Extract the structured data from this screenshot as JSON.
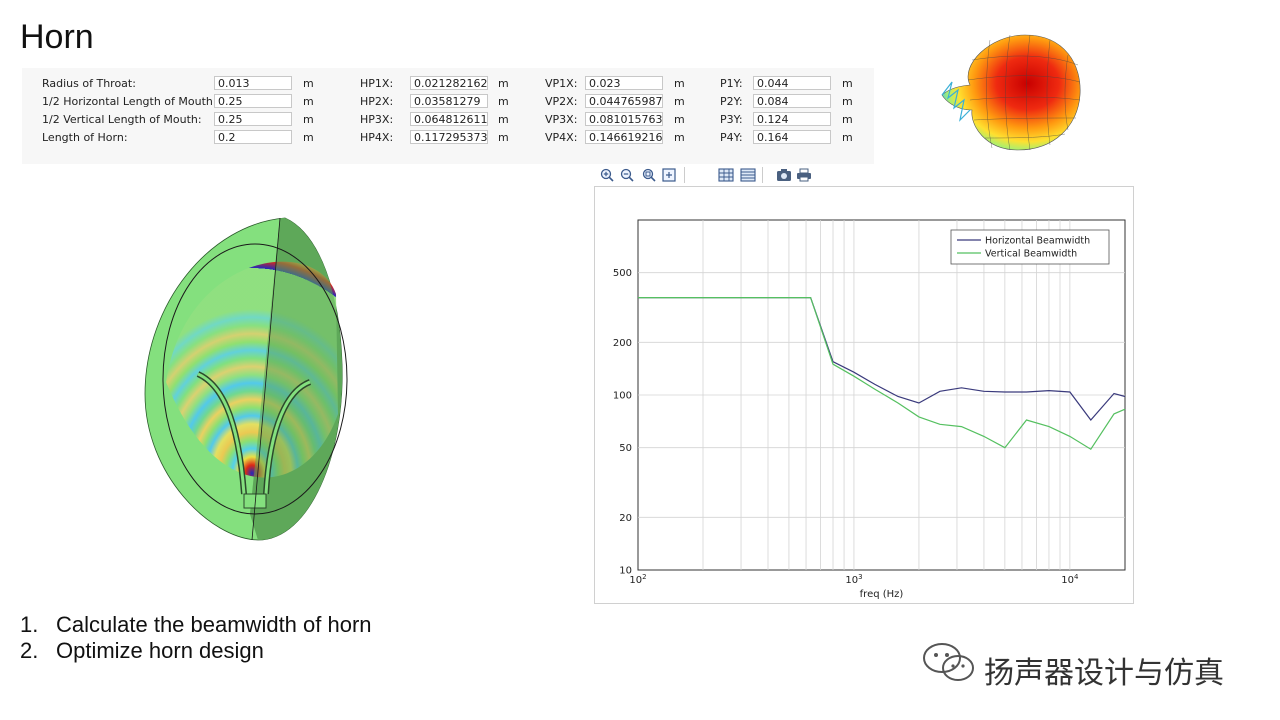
{
  "slide": {
    "title": "Horn"
  },
  "params": {
    "col1": [
      {
        "label": "Radius of Throat:",
        "value": "0.013",
        "unit": "m"
      },
      {
        "label": "1/2 Horizontal Length of Mouth:",
        "value": "0.25",
        "unit": "m"
      },
      {
        "label": "1/2 Vertical Length of Mouth:",
        "value": "0.25",
        "unit": "m"
      },
      {
        "label": "Length of Horn:",
        "value": "0.2",
        "unit": "m"
      }
    ],
    "col2": [
      {
        "label": "HP1X:",
        "value": "0.021282162",
        "unit": "m"
      },
      {
        "label": "HP2X:",
        "value": "0.03581279",
        "unit": "m"
      },
      {
        "label": "HP3X:",
        "value": "0.064812611",
        "unit": "m"
      },
      {
        "label": "HP4X:",
        "value": "0.117295373",
        "unit": "m"
      }
    ],
    "col3": [
      {
        "label": "VP1X:",
        "value": "0.023",
        "unit": "m"
      },
      {
        "label": "VP2X:",
        "value": "0.044765987",
        "unit": "m"
      },
      {
        "label": "VP3X:",
        "value": "0.081015763",
        "unit": "m"
      },
      {
        "label": "VP4X:",
        "value": "0.146619216",
        "unit": "m"
      }
    ],
    "col4": [
      {
        "label": "P1Y:",
        "value": "0.044",
        "unit": "m"
      },
      {
        "label": "P2Y:",
        "value": "0.084",
        "unit": "m"
      },
      {
        "label": "P3Y:",
        "value": "0.124",
        "unit": "m"
      },
      {
        "label": "P4Y:",
        "value": "0.164",
        "unit": "m"
      }
    ]
  },
  "toolbar": {
    "icons": [
      "zoom-in-icon",
      "zoom-out-icon",
      "zoom-box-icon",
      "zoom-extents-icon",
      "grid-table-icon",
      "table-icon",
      "camera-icon",
      "print-icon"
    ]
  },
  "bullets": [
    {
      "num": "1.",
      "text": "Calculate the beamwidth of horn"
    },
    {
      "num": "2.",
      "text": "Optimize horn design"
    }
  ],
  "watermark": {
    "text": "扬声器设计与仿真"
  },
  "chart_data": {
    "type": "line",
    "xlabel": "freq (Hz)",
    "ylabel": "",
    "xscale": "log",
    "yscale": "log",
    "xlim": [
      100,
      18000
    ],
    "ylim": [
      10,
      1000
    ],
    "x_ticks": [
      {
        "value": 100,
        "base": "10",
        "exp": "2"
      },
      {
        "value": 1000,
        "base": "10",
        "exp": "3"
      },
      {
        "value": 10000,
        "base": "10",
        "exp": "4"
      }
    ],
    "y_ticks": [
      {
        "value": 10,
        "label": "10"
      },
      {
        "value": 20,
        "label": "20"
      },
      {
        "value": 50,
        "label": "50"
      },
      {
        "value": 100,
        "label": "100"
      },
      {
        "value": 200,
        "label": "200"
      },
      {
        "value": 500,
        "label": "500"
      }
    ],
    "grid": true,
    "legend_position": "top-right",
    "series": [
      {
        "name": "Horizontal Beamwidth",
        "color": "#3a3a7c",
        "x": [
          100,
          630,
          800,
          1000,
          1250,
          1600,
          2000,
          2500,
          3150,
          4000,
          5000,
          6300,
          8000,
          10000,
          12500,
          16000,
          18000
        ],
        "y": [
          360,
          360,
          155,
          135,
          115,
          98,
          90,
          105,
          110,
          105,
          104,
          104,
          106,
          104,
          72,
          102,
          98
        ]
      },
      {
        "name": "Vertical Beamwidth",
        "color": "#55c060",
        "x": [
          100,
          630,
          800,
          1000,
          1250,
          1600,
          2000,
          2500,
          3150,
          4000,
          5000,
          6300,
          8000,
          10000,
          12500,
          16000,
          18000
        ],
        "y": [
          360,
          360,
          150,
          128,
          108,
          90,
          75,
          68,
          66,
          58,
          50,
          72,
          66,
          58,
          49,
          78,
          83
        ]
      }
    ]
  }
}
